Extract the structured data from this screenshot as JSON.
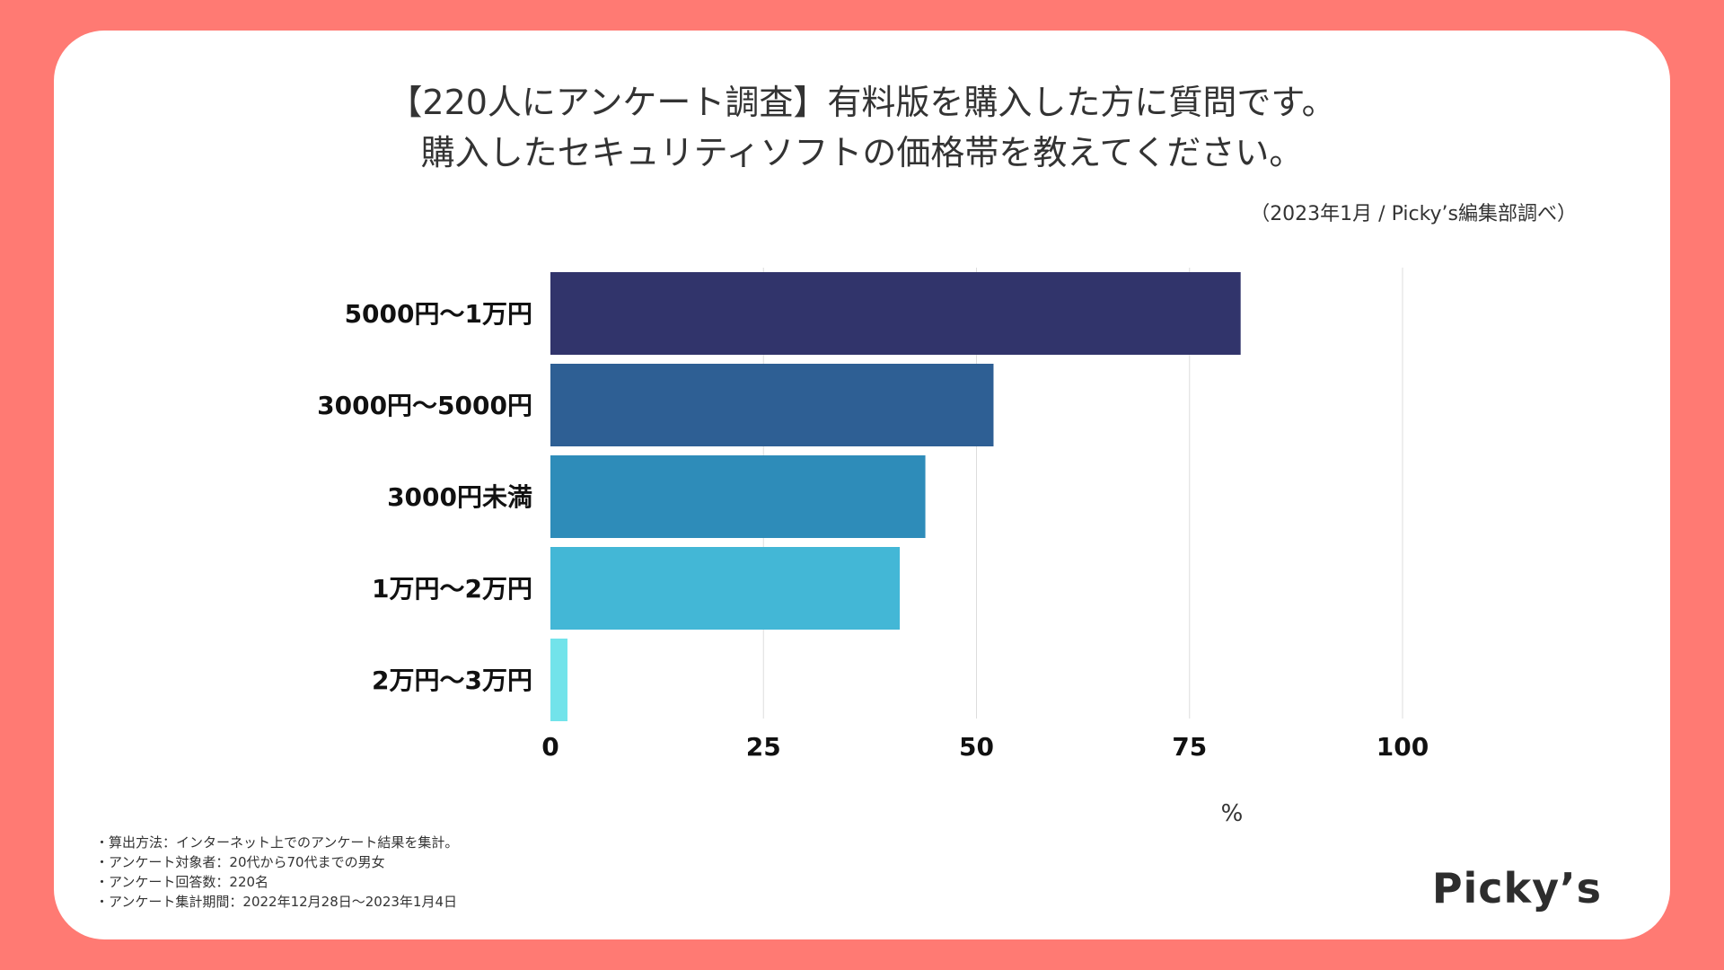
{
  "title_lines": [
    "【220人にアンケート調査】有料版を購入した方に質問です。",
    "購入したセキュリティソフトの価格帯を教えてください。"
  ],
  "source": "（2023年1月 / Picky’s編集部調べ）",
  "colors": {
    "background": "#ff7a73",
    "gridline": "#dddddd",
    "text": "#333333",
    "bars": [
      "#31346b",
      "#2e5f94",
      "#2e8cb9",
      "#43b7d6",
      "#72e3ea"
    ]
  },
  "chart_data": {
    "type": "bar",
    "orientation": "horizontal",
    "categories": [
      "5000円〜1万円",
      "3000円〜5000円",
      "3000円未満",
      "1万円〜2万円",
      "2万円〜3万円"
    ],
    "values": [
      81,
      52,
      44,
      41,
      2
    ],
    "xlim": [
      0,
      100
    ],
    "xticks": [
      "0",
      "25",
      "50",
      "75",
      "100"
    ],
    "xlabel": "%",
    "grid": true
  },
  "notes": [
    "・算出方法：インターネット上でのアンケート結果を集計。",
    "・アンケート対象者：20代から70代までの男女",
    "・アンケート回答数：220名",
    "・アンケート集計期間：2022年12月28日〜2023年1月4日"
  ],
  "logo_text": "Picky’s"
}
